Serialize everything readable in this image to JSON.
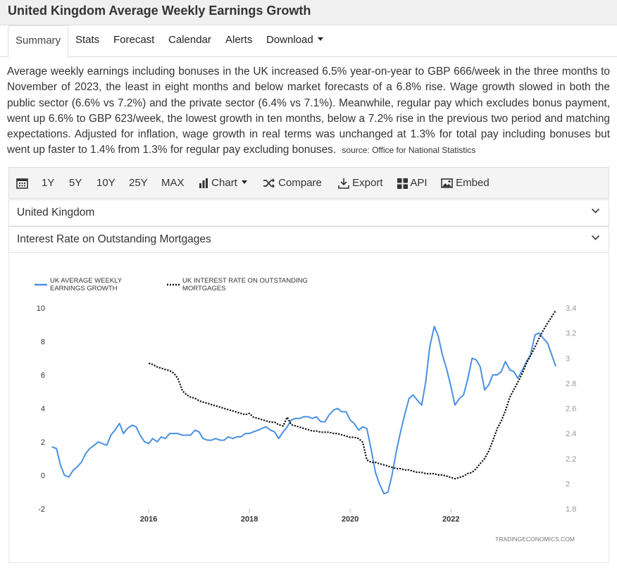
{
  "page": {
    "title": "United Kingdom Average Weekly Earnings Growth"
  },
  "tabs": [
    {
      "label": "Summary"
    },
    {
      "label": "Stats"
    },
    {
      "label": "Forecast"
    },
    {
      "label": "Calendar"
    },
    {
      "label": "Alerts"
    },
    {
      "label": "Download"
    }
  ],
  "summary": {
    "text": "Average weekly earnings including bonuses in the UK increased 6.5% year-on-year to GBP 666/week in the three months to November of 2023, the least in eight months and below market forecasts of a 6.8% rise. Wage growth slowed in both the public sector (6.6% vs 7.2%) and the private sector (6.4% vs 7.1%). Meanwhile, regular pay which excludes bonus payment, went up 6.6% to GBP 623/week, the lowest growth in ten months, below a 7.2% rise in the previous two period and matching expectations. Adjusted for inflation, wage growth in real terms was unchanged at 1.3% for total pay including bonuses but went up faster to 1.4% from 1.3% for regular pay excluding bonuses.",
    "source": "source: Office for National Statistics"
  },
  "toolbar": {
    "ranges": [
      "1Y",
      "5Y",
      "10Y",
      "25Y",
      "MAX"
    ],
    "chart_label": "Chart",
    "compare_label": "Compare",
    "export_label": "Export",
    "api_label": "API",
    "embed_label": "Embed"
  },
  "selectors": [
    {
      "label": "United Kingdom"
    },
    {
      "label": "Interest Rate on Outstanding Mortgages"
    }
  ],
  "chart_data": {
    "type": "line",
    "watermark": "TRADINGECONOMICS.COM",
    "x_ticks": [
      "2016",
      "2018",
      "2020",
      "2022"
    ],
    "y_left": {
      "min": -2,
      "max": 10,
      "ticks": [
        "10",
        "8",
        "6",
        "4",
        "2",
        "0",
        "-2"
      ]
    },
    "y_right": {
      "min": 1.8,
      "max": 3.4,
      "ticks": [
        "3.4",
        "3.2",
        "3",
        "2.8",
        "2.6",
        "2.4",
        "2.2",
        "2",
        "1.8"
      ]
    },
    "series": [
      {
        "name": "UK AVERAGE WEEKLY EARNINGS GROWTH",
        "axis": "left",
        "color": "#4a90e2",
        "style": "solid",
        "points": [
          [
            2014.08,
            1.7
          ],
          [
            2014.17,
            1.6
          ],
          [
            2014.25,
            0.6
          ],
          [
            2014.33,
            0.0
          ],
          [
            2014.42,
            -0.1
          ],
          [
            2014.5,
            0.3
          ],
          [
            2014.58,
            0.5
          ],
          [
            2014.67,
            0.8
          ],
          [
            2014.75,
            1.3
          ],
          [
            2014.83,
            1.6
          ],
          [
            2014.92,
            1.8
          ],
          [
            2015.0,
            2.0
          ],
          [
            2015.08,
            1.9
          ],
          [
            2015.17,
            1.8
          ],
          [
            2015.25,
            2.4
          ],
          [
            2015.33,
            2.7
          ],
          [
            2015.42,
            3.1
          ],
          [
            2015.5,
            2.5
          ],
          [
            2015.58,
            2.8
          ],
          [
            2015.67,
            3.0
          ],
          [
            2015.75,
            2.9
          ],
          [
            2015.83,
            2.4
          ],
          [
            2015.92,
            2.0
          ],
          [
            2016.0,
            1.9
          ],
          [
            2016.08,
            2.2
          ],
          [
            2016.17,
            2.0
          ],
          [
            2016.25,
            2.3
          ],
          [
            2016.33,
            2.2
          ],
          [
            2016.42,
            2.5
          ],
          [
            2016.5,
            2.5
          ],
          [
            2016.58,
            2.5
          ],
          [
            2016.67,
            2.4
          ],
          [
            2016.75,
            2.4
          ],
          [
            2016.83,
            2.4
          ],
          [
            2016.92,
            2.7
          ],
          [
            2017.0,
            2.6
          ],
          [
            2017.08,
            2.2
          ],
          [
            2017.17,
            2.1
          ],
          [
            2017.25,
            2.1
          ],
          [
            2017.33,
            2.2
          ],
          [
            2017.42,
            2.1
          ],
          [
            2017.5,
            2.1
          ],
          [
            2017.58,
            2.3
          ],
          [
            2017.67,
            2.2
          ],
          [
            2017.75,
            2.3
          ],
          [
            2017.83,
            2.3
          ],
          [
            2017.92,
            2.5
          ],
          [
            2018.0,
            2.5
          ],
          [
            2018.08,
            2.6
          ],
          [
            2018.17,
            2.7
          ],
          [
            2018.25,
            2.8
          ],
          [
            2018.33,
            2.9
          ],
          [
            2018.42,
            2.7
          ],
          [
            2018.5,
            2.6
          ],
          [
            2018.58,
            2.2
          ],
          [
            2018.67,
            2.6
          ],
          [
            2018.75,
            2.9
          ],
          [
            2018.83,
            3.3
          ],
          [
            2018.92,
            3.4
          ],
          [
            2019.0,
            3.4
          ],
          [
            2019.08,
            3.5
          ],
          [
            2019.17,
            3.5
          ],
          [
            2019.25,
            3.4
          ],
          [
            2019.33,
            3.5
          ],
          [
            2019.42,
            3.2
          ],
          [
            2019.5,
            3.2
          ],
          [
            2019.58,
            3.6
          ],
          [
            2019.67,
            3.9
          ],
          [
            2019.75,
            4.0
          ],
          [
            2019.83,
            3.8
          ],
          [
            2019.92,
            3.8
          ],
          [
            2020.0,
            3.3
          ],
          [
            2020.08,
            3.1
          ],
          [
            2020.17,
            2.7
          ],
          [
            2020.25,
            2.9
          ],
          [
            2020.33,
            2.8
          ],
          [
            2020.42,
            1.5
          ],
          [
            2020.5,
            0.2
          ],
          [
            2020.58,
            -0.5
          ],
          [
            2020.67,
            -1.1
          ],
          [
            2020.75,
            -1.0
          ],
          [
            2020.83,
            0.0
          ],
          [
            2020.92,
            1.5
          ],
          [
            2021.0,
            2.6
          ],
          [
            2021.08,
            3.6
          ],
          [
            2021.17,
            4.6
          ],
          [
            2021.25,
            4.8
          ],
          [
            2021.33,
            4.5
          ],
          [
            2021.42,
            4.2
          ],
          [
            2021.5,
            5.6
          ],
          [
            2021.58,
            7.7
          ],
          [
            2021.67,
            8.9
          ],
          [
            2021.75,
            8.3
          ],
          [
            2021.83,
            7.2
          ],
          [
            2021.92,
            6.3
          ],
          [
            2022.0,
            5.3
          ],
          [
            2022.08,
            4.2
          ],
          [
            2022.17,
            4.6
          ],
          [
            2022.25,
            4.8
          ],
          [
            2022.33,
            5.7
          ],
          [
            2022.42,
            7.0
          ],
          [
            2022.5,
            6.9
          ],
          [
            2022.58,
            6.5
          ],
          [
            2022.67,
            5.1
          ],
          [
            2022.75,
            5.4
          ],
          [
            2022.83,
            6.0
          ],
          [
            2022.92,
            6.0
          ],
          [
            2023.0,
            6.2
          ],
          [
            2023.08,
            6.8
          ],
          [
            2023.17,
            6.3
          ],
          [
            2023.25,
            6.2
          ],
          [
            2023.33,
            5.8
          ],
          [
            2023.42,
            6.3
          ],
          [
            2023.5,
            6.8
          ],
          [
            2023.58,
            7.2
          ],
          [
            2023.67,
            8.4
          ],
          [
            2023.75,
            8.5
          ],
          [
            2023.83,
            8.2
          ],
          [
            2023.92,
            7.9
          ],
          [
            2024.0,
            7.2
          ],
          [
            2024.08,
            6.5
          ]
        ]
      },
      {
        "name": "UK INTEREST RATE ON OUTSTANDING MORTGAGES",
        "axis": "right",
        "color": "#111111",
        "style": "dotted",
        "points": [
          [
            2016.0,
            2.96
          ],
          [
            2016.08,
            2.95
          ],
          [
            2016.17,
            2.93
          ],
          [
            2016.25,
            2.92
          ],
          [
            2016.33,
            2.91
          ],
          [
            2016.42,
            2.9
          ],
          [
            2016.5,
            2.88
          ],
          [
            2016.58,
            2.84
          ],
          [
            2016.67,
            2.74
          ],
          [
            2016.75,
            2.71
          ],
          [
            2016.83,
            2.69
          ],
          [
            2016.92,
            2.68
          ],
          [
            2017.0,
            2.66
          ],
          [
            2017.08,
            2.65
          ],
          [
            2017.17,
            2.64
          ],
          [
            2017.25,
            2.63
          ],
          [
            2017.33,
            2.62
          ],
          [
            2017.42,
            2.61
          ],
          [
            2017.5,
            2.6
          ],
          [
            2017.58,
            2.59
          ],
          [
            2017.67,
            2.58
          ],
          [
            2017.75,
            2.57
          ],
          [
            2017.83,
            2.56
          ],
          [
            2017.92,
            2.55
          ],
          [
            2018.0,
            2.56
          ],
          [
            2018.08,
            2.53
          ],
          [
            2018.17,
            2.52
          ],
          [
            2018.25,
            2.51
          ],
          [
            2018.33,
            2.5
          ],
          [
            2018.42,
            2.49
          ],
          [
            2018.5,
            2.49
          ],
          [
            2018.58,
            2.47
          ],
          [
            2018.67,
            2.46
          ],
          [
            2018.75,
            2.53
          ],
          [
            2018.83,
            2.47
          ],
          [
            2018.92,
            2.46
          ],
          [
            2019.0,
            2.45
          ],
          [
            2019.08,
            2.44
          ],
          [
            2019.17,
            2.43
          ],
          [
            2019.25,
            2.42
          ],
          [
            2019.33,
            2.42
          ],
          [
            2019.42,
            2.41
          ],
          [
            2019.5,
            2.41
          ],
          [
            2019.58,
            2.41
          ],
          [
            2019.67,
            2.4
          ],
          [
            2019.75,
            2.4
          ],
          [
            2019.83,
            2.39
          ],
          [
            2019.92,
            2.38
          ],
          [
            2020.0,
            2.37
          ],
          [
            2020.08,
            2.37
          ],
          [
            2020.17,
            2.36
          ],
          [
            2020.25,
            2.33
          ],
          [
            2020.33,
            2.19
          ],
          [
            2020.42,
            2.17
          ],
          [
            2020.5,
            2.17
          ],
          [
            2020.58,
            2.16
          ],
          [
            2020.67,
            2.15
          ],
          [
            2020.75,
            2.14
          ],
          [
            2020.83,
            2.13
          ],
          [
            2020.92,
            2.12
          ],
          [
            2021.0,
            2.12
          ],
          [
            2021.08,
            2.11
          ],
          [
            2021.17,
            2.11
          ],
          [
            2021.25,
            2.1
          ],
          [
            2021.33,
            2.09
          ],
          [
            2021.42,
            2.09
          ],
          [
            2021.5,
            2.08
          ],
          [
            2021.58,
            2.08
          ],
          [
            2021.67,
            2.08
          ],
          [
            2021.75,
            2.07
          ],
          [
            2021.83,
            2.07
          ],
          [
            2021.92,
            2.06
          ],
          [
            2022.0,
            2.05
          ],
          [
            2022.08,
            2.04
          ],
          [
            2022.17,
            2.05
          ],
          [
            2022.25,
            2.06
          ],
          [
            2022.33,
            2.08
          ],
          [
            2022.42,
            2.09
          ],
          [
            2022.5,
            2.12
          ],
          [
            2022.58,
            2.16
          ],
          [
            2022.67,
            2.2
          ],
          [
            2022.75,
            2.26
          ],
          [
            2022.83,
            2.34
          ],
          [
            2022.92,
            2.44
          ],
          [
            2023.0,
            2.5
          ],
          [
            2023.08,
            2.58
          ],
          [
            2023.17,
            2.69
          ],
          [
            2023.25,
            2.75
          ],
          [
            2023.33,
            2.81
          ],
          [
            2023.42,
            2.88
          ],
          [
            2023.5,
            2.96
          ],
          [
            2023.58,
            3.02
          ],
          [
            2023.67,
            3.09
          ],
          [
            2023.75,
            3.16
          ],
          [
            2023.83,
            3.22
          ],
          [
            2023.92,
            3.28
          ],
          [
            2024.0,
            3.33
          ],
          [
            2024.08,
            3.38
          ]
        ]
      }
    ]
  }
}
